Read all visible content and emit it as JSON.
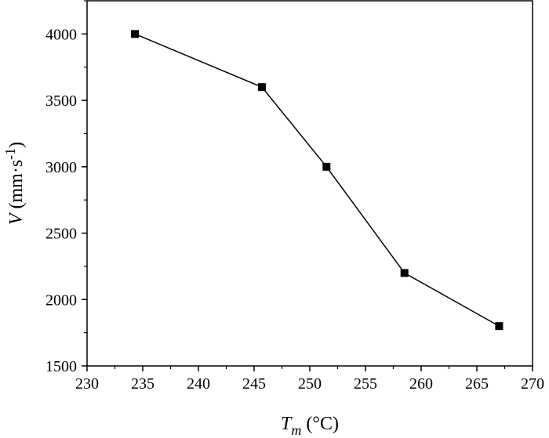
{
  "chart_data": {
    "type": "line",
    "x": [
      234.3,
      245.7,
      251.5,
      258.5,
      267.0
    ],
    "y": [
      4000,
      3600,
      3000,
      2200,
      1800
    ],
    "xlim": [
      230,
      270
    ],
    "ylim": [
      1500,
      4250
    ],
    "xticks": [
      "230",
      "235",
      "240",
      "245",
      "250",
      "255",
      "260",
      "265",
      "270"
    ],
    "yticks": [
      "1500",
      "2000",
      "2500",
      "3000",
      "3500",
      "4000"
    ],
    "xlabel": {
      "main": "T",
      "sub": "m",
      "unit": "(°C)"
    },
    "ylabel": {
      "main": "V",
      "unit": "(mm·s",
      "sup": "-1",
      "close": ")"
    },
    "marker": "square",
    "grid": false,
    "line_color": "#000000",
    "marker_color": "#000000"
  }
}
